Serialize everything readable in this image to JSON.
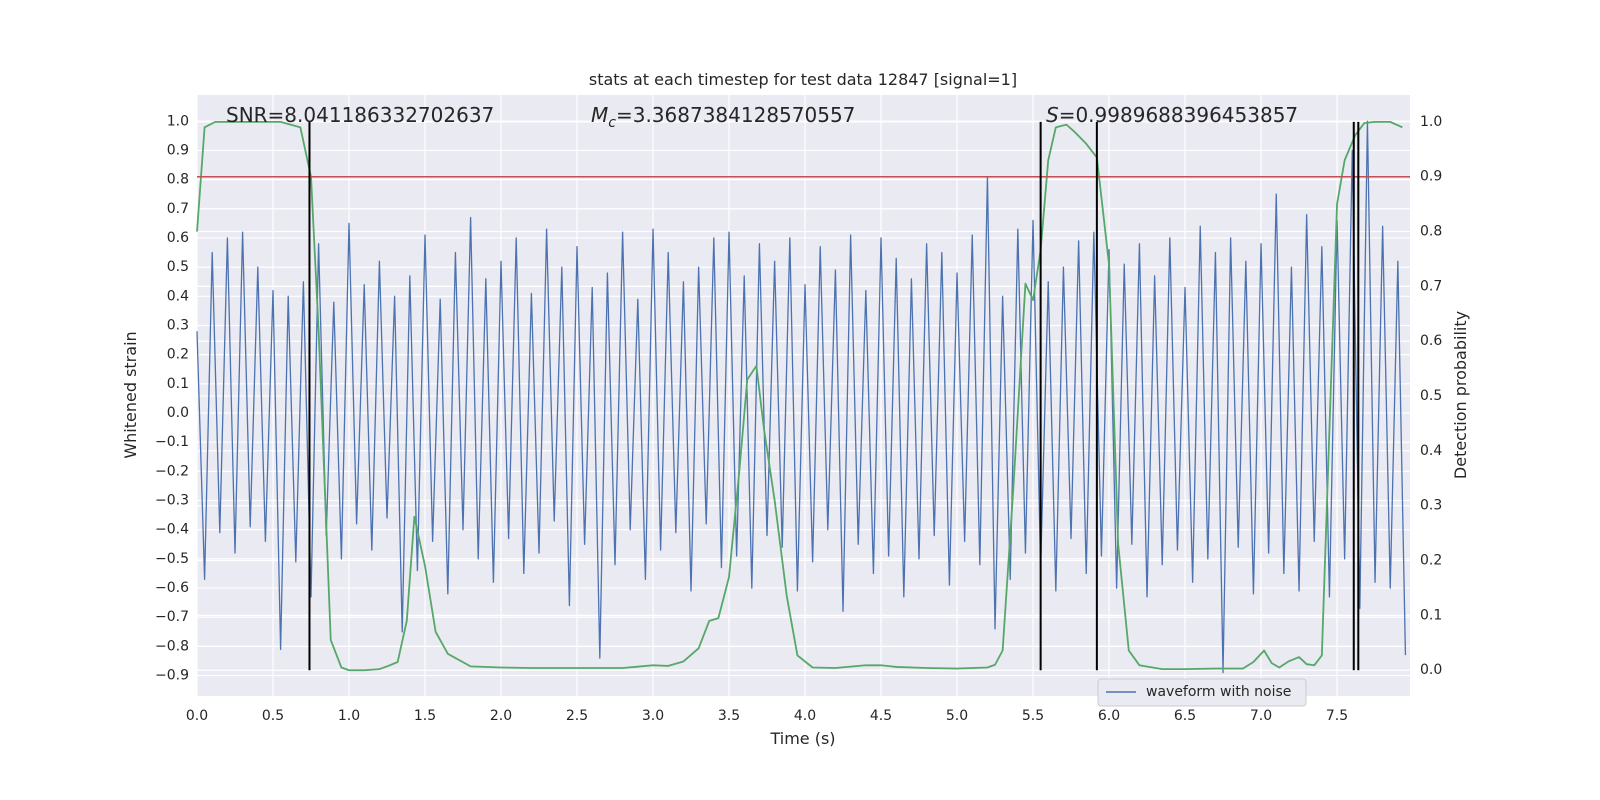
{
  "chart_data": {
    "type": "line",
    "title": "stats at each timestep for test data 12847 [signal=1]",
    "xlabel": "Time (s)",
    "ylabel": "Whitened strain",
    "y2label": "Detection probability",
    "xlim": [
      0,
      7.98
    ],
    "ylim": [
      -0.97,
      1.09
    ],
    "y2lim": [
      -0.047,
      1.049
    ],
    "xticks": [
      {
        "value": 0,
        "label": "0.0"
      },
      0.5,
      {
        "value": 1,
        "label": "1.0"
      },
      1.5,
      {
        "value": 2,
        "label": "2.0"
      },
      2.5,
      {
        "value": 3,
        "label": "3.0"
      },
      3.5,
      {
        "value": 4,
        "label": "4.0"
      },
      4.5,
      {
        "value": 5,
        "label": "5.0"
      },
      5.5,
      {
        "value": 6,
        "label": "6.0"
      },
      6.5,
      {
        "value": 7,
        "label": "7.0"
      },
      7.5
    ],
    "yticks": [
      {
        "value": -0.9,
        "label": "−0.9"
      },
      {
        "value": -0.8,
        "label": "−0.8"
      },
      {
        "value": -0.7,
        "label": "−0.7"
      },
      {
        "value": -0.6,
        "label": "−0.6"
      },
      {
        "value": -0.5,
        "label": "−0.5"
      },
      {
        "value": -0.4,
        "label": "−0.4"
      },
      {
        "value": -0.3,
        "label": "−0.3"
      },
      {
        "value": -0.2,
        "label": "−0.2"
      },
      {
        "value": -0.1,
        "label": "−0.1"
      },
      {
        "value": 0,
        "label": "0.0"
      },
      0.1,
      0.2,
      0.3,
      0.4,
      0.5,
      0.6,
      0.7,
      0.8,
      0.9,
      {
        "value": 1,
        "label": "1.0"
      }
    ],
    "y2ticks": [
      {
        "value": 0,
        "label": "0.0"
      },
      0.1,
      0.2,
      0.3,
      0.4,
      0.5,
      0.6,
      0.7,
      0.8,
      0.9,
      {
        "value": 1,
        "label": "1.0"
      }
    ],
    "grid": true,
    "legend": "lower right",
    "series": [
      {
        "name": "waveform with noise",
        "color": "#4c72b0",
        "axis": "y",
        "x": [
          0,
          0.05,
          0.1,
          0.15,
          0.2,
          0.25,
          0.3,
          0.35,
          0.4,
          0.45,
          0.5,
          0.55,
          0.6,
          0.65,
          0.7,
          0.75,
          0.8,
          0.85,
          0.9,
          0.95,
          1,
          1.05,
          1.1,
          1.15,
          1.2,
          1.25,
          1.3,
          1.35,
          1.4,
          1.45,
          1.5,
          1.55,
          1.6,
          1.65,
          1.7,
          1.75,
          1.8,
          1.85,
          1.9,
          1.95,
          2,
          2.05,
          2.1,
          2.15,
          2.2,
          2.25,
          2.3,
          2.35,
          2.4,
          2.45,
          2.5,
          2.55,
          2.6,
          2.65,
          2.7,
          2.75,
          2.8,
          2.85,
          2.9,
          2.95,
          3,
          3.05,
          3.1,
          3.15,
          3.2,
          3.25,
          3.3,
          3.35,
          3.4,
          3.45,
          3.5,
          3.55,
          3.6,
          3.65,
          3.7,
          3.75,
          3.8,
          3.85,
          3.9,
          3.95,
          4,
          4.05,
          4.1,
          4.15,
          4.2,
          4.25,
          4.3,
          4.35,
          4.4,
          4.45,
          4.5,
          4.55,
          4.6,
          4.65,
          4.7,
          4.75,
          4.8,
          4.85,
          4.9,
          4.95,
          5,
          5.05,
          5.1,
          5.15,
          5.2,
          5.25,
          5.3,
          5.35,
          5.4,
          5.45,
          5.5,
          5.55,
          5.6,
          5.65,
          5.7,
          5.75,
          5.8,
          5.85,
          5.9,
          5.95,
          6,
          6.05,
          6.1,
          6.15,
          6.2,
          6.25,
          6.3,
          6.35,
          6.4,
          6.45,
          6.5,
          6.55,
          6.6,
          6.65,
          6.7,
          6.75,
          6.8,
          6.85,
          6.9,
          6.95,
          7,
          7.05,
          7.1,
          7.15,
          7.2,
          7.25,
          7.3,
          7.35,
          7.4,
          7.45,
          7.5,
          7.55,
          7.6,
          7.65,
          7.7,
          7.75,
          7.8,
          7.85,
          7.9,
          7.95
        ],
        "values": [
          0.28,
          -0.57,
          0.55,
          -0.41,
          0.6,
          -0.48,
          0.62,
          -0.39,
          0.5,
          -0.44,
          0.42,
          -0.81,
          0.4,
          -0.51,
          0.45,
          -0.63,
          0.58,
          -0.42,
          0.38,
          -0.5,
          0.65,
          -0.38,
          0.44,
          -0.47,
          0.52,
          -0.36,
          0.4,
          -0.75,
          0.47,
          -0.54,
          0.61,
          -0.44,
          0.39,
          -0.62,
          0.55,
          -0.4,
          0.67,
          -0.5,
          0.46,
          -0.58,
          0.52,
          -0.43,
          0.6,
          -0.55,
          0.41,
          -0.48,
          0.63,
          -0.37,
          0.5,
          -0.66,
          0.57,
          -0.45,
          0.43,
          -0.84,
          0.48,
          -0.52,
          0.62,
          -0.4,
          0.39,
          -0.57,
          0.63,
          -0.47,
          0.55,
          -0.41,
          0.45,
          -0.61,
          0.5,
          -0.38,
          0.6,
          -0.53,
          0.62,
          -0.49,
          0.47,
          -0.6,
          0.58,
          -0.42,
          0.52,
          -0.46,
          0.6,
          -0.61,
          0.44,
          -0.51,
          0.57,
          -0.4,
          0.49,
          -0.68,
          0.61,
          -0.45,
          0.42,
          -0.55,
          0.6,
          -0.49,
          0.53,
          -0.63,
          0.46,
          -0.5,
          0.58,
          -0.42,
          0.55,
          -0.59,
          0.48,
          -0.44,
          0.61,
          -0.52,
          0.81,
          -0.74,
          0.4,
          -0.57,
          0.63,
          -0.48,
          0.66,
          -0.53,
          0.45,
          -0.61,
          0.5,
          -0.43,
          0.59,
          -0.55,
          0.62,
          -0.49,
          0.56,
          -0.6,
          0.51,
          -0.45,
          0.58,
          -0.63,
          0.47,
          -0.52,
          0.6,
          -0.47,
          0.43,
          -0.58,
          0.64,
          -0.5,
          0.55,
          -0.89,
          0.6,
          -0.46,
          0.52,
          -0.62,
          0.58,
          -0.48,
          0.75,
          -0.55,
          0.5,
          -0.61,
          0.68,
          -0.44,
          0.57,
          -0.63,
          0.66,
          -0.5,
          0.9,
          -0.67,
          1.0,
          -0.58,
          0.64,
          -0.6,
          0.52,
          -0.83
        ]
      },
      {
        "color": "#55a868",
        "axis": "y2",
        "x": [
          0,
          0.05,
          0.12,
          0.2,
          0.55,
          0.68,
          0.75,
          0.8,
          0.88,
          0.95,
          1,
          1.1,
          1.2,
          1.26,
          1.32,
          1.38,
          1.43,
          1.5,
          1.57,
          1.65,
          1.8,
          2,
          2.2,
          2.5,
          2.8,
          3,
          3.1,
          3.2,
          3.3,
          3.37,
          3.43,
          3.5,
          3.57,
          3.62,
          3.68,
          3.73,
          3.8,
          3.88,
          3.95,
          4.05,
          4.2,
          4.4,
          4.5,
          4.6,
          4.8,
          5,
          5.2,
          5.25,
          5.3,
          5.37,
          5.45,
          5.5,
          5.55,
          5.6,
          5.65,
          5.72,
          5.78,
          5.85,
          5.92,
          6,
          6.06,
          6.13,
          6.2,
          6.35,
          6.5,
          6.7,
          6.88,
          6.95,
          7.02,
          7.07,
          7.12,
          7.18,
          7.25,
          7.3,
          7.35,
          7.4,
          7.45,
          7.5,
          7.55,
          7.62,
          7.68,
          7.75,
          7.85,
          7.93
        ],
        "values": [
          0.8,
          0.99,
          1,
          1,
          1,
          0.99,
          0.9,
          0.62,
          0.055,
          0.005,
          0,
          0,
          0.002,
          0.008,
          0.015,
          0.09,
          0.28,
          0.19,
          0.07,
          0.03,
          0.007,
          0.005,
          0.004,
          0.004,
          0.004,
          0.009,
          0.008,
          0.016,
          0.04,
          0.09,
          0.095,
          0.17,
          0.37,
          0.53,
          0.555,
          0.44,
          0.31,
          0.135,
          0.027,
          0.005,
          0.004,
          0.009,
          0.009,
          0.006,
          0.004,
          0.003,
          0.005,
          0.01,
          0.036,
          0.33,
          0.705,
          0.675,
          0.766,
          0.93,
          0.99,
          0.995,
          0.98,
          0.96,
          0.935,
          0.74,
          0.23,
          0.036,
          0.009,
          0.002,
          0.002,
          0.003,
          0.003,
          0.015,
          0.036,
          0.013,
          0.005,
          0.016,
          0.024,
          0.011,
          0.009,
          0.027,
          0.44,
          0.85,
          0.93,
          0.976,
          0.998,
          1,
          1,
          0.99
        ]
      }
    ],
    "threshold": {
      "value": 0.9,
      "axis": "y2",
      "color": "#c44e52"
    },
    "vlines": {
      "x": [
        0.74,
        5.55,
        5.92,
        7.61,
        7.64
      ],
      "ymin": 0,
      "ymax": 1,
      "axis": "y2",
      "color": "#000000"
    },
    "annotations": [
      {
        "text": "SNR=8.041186332702637"
      },
      {
        "symbol": "M",
        "subscript": "c",
        "text": "=3.3687384128570557"
      },
      {
        "symbol": "S",
        "text": "=0.9989688396453857"
      }
    ]
  }
}
